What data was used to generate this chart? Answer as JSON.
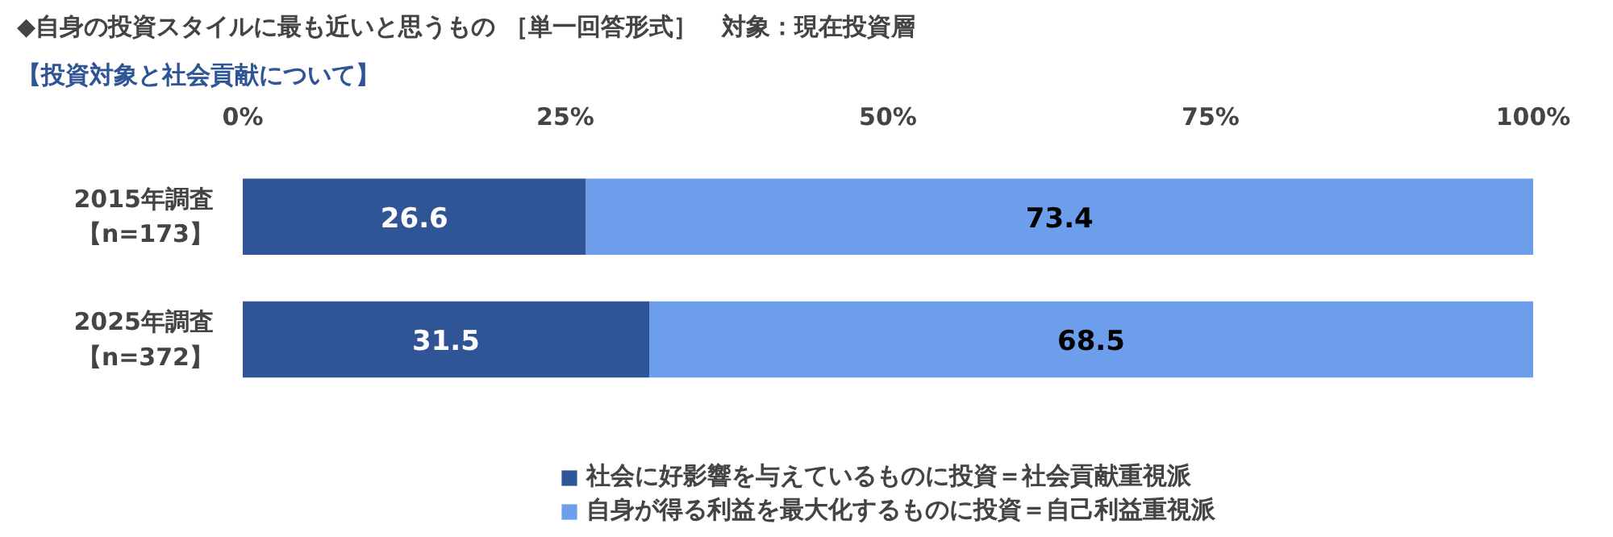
{
  "chart_data": {
    "type": "bar",
    "orientation": "horizontal",
    "stacked": true,
    "title": "◆自身の投資スタイルに最も近いと思うもの ［単一回答形式］　対象：現在投資層",
    "subtitle": "【投資対象と社会貢献について】",
    "categories": [
      "2015年調査【n=173】",
      "2025年調査【n=372】"
    ],
    "series": [
      {
        "name": "社会に好影響を与えているものに投資＝社会貢献重視派",
        "color": "#2f5597",
        "values": [
          26.6,
          31.5
        ]
      },
      {
        "name": "自身が得る利益を最大化するものに投資＝自己利益重視派",
        "color": "#6d9eeb",
        "values": [
          73.4,
          68.5
        ]
      }
    ],
    "xlim": [
      0,
      100
    ],
    "xticks": [
      {
        "value": 0,
        "label": "0%"
      },
      {
        "value": 25,
        "label": "25%"
      },
      {
        "value": 50,
        "label": "50%"
      },
      {
        "value": 75,
        "label": "75%"
      },
      {
        "value": 100,
        "label": "100%"
      }
    ],
    "data_labels": true,
    "legend": "bottom",
    "grid": false
  }
}
